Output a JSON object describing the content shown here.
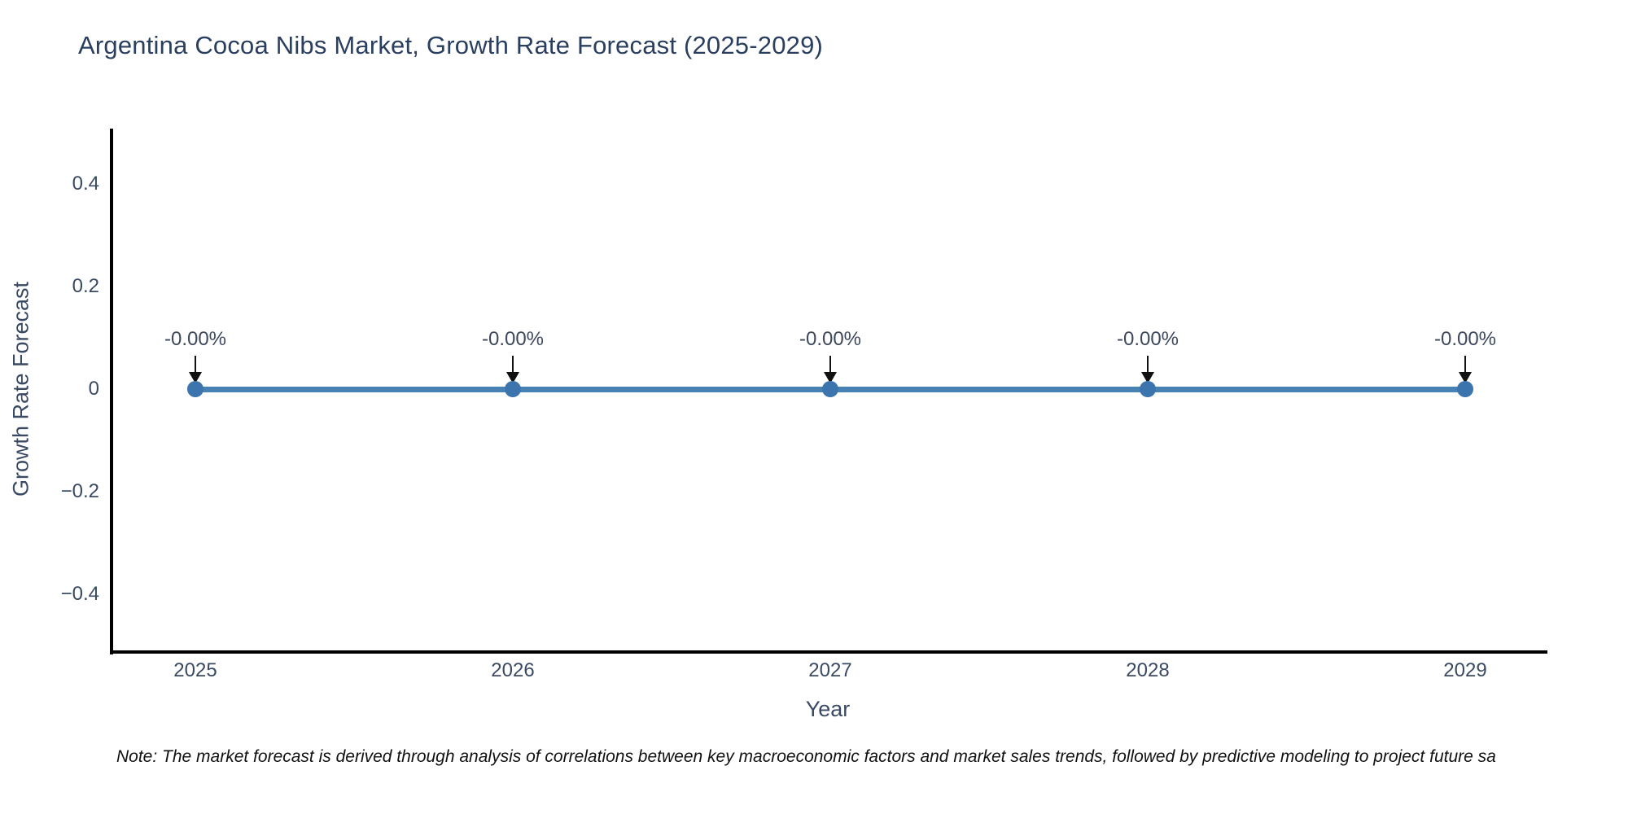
{
  "chart_data": {
    "type": "line",
    "title": "Argentina Cocoa Nibs Market, Growth Rate Forecast (2025-2029)",
    "xlabel": "Year",
    "ylabel": "Growth Rate Forecast",
    "x": [
      2025,
      2026,
      2027,
      2028,
      2029
    ],
    "series": [
      {
        "name": "Growth Rate Forecast",
        "values": [
          0,
          0,
          0,
          0,
          0
        ],
        "point_labels": [
          "-0.00%",
          "-0.00%",
          "-0.00%",
          "-0.00%",
          "-0.00%"
        ]
      }
    ],
    "yticks": [
      {
        "value": 0.4,
        "label": "0.4"
      },
      {
        "value": 0.2,
        "label": "0.2"
      },
      {
        "value": 0,
        "label": "0"
      },
      {
        "value": -0.2,
        "label": "−0.2"
      },
      {
        "value": -0.4,
        "label": "−0.4"
      }
    ],
    "ylim": [
      -0.51,
      0.51
    ],
    "grid": false,
    "legend": "none",
    "annotation_style": "down-arrow",
    "colors": {
      "line": "#4682b4",
      "marker": "#3c74ad",
      "title_text": "#2a3f5f",
      "axis_text": "#3a4a63",
      "spine": "#000000",
      "arrow": "#111111",
      "note_text": "#111111",
      "background": "#ffffff"
    },
    "note": "Note: The market forecast is derived through analysis of correlations between key macroeconomic factors and market sales trends, followed by predictive modeling to project future sa"
  }
}
